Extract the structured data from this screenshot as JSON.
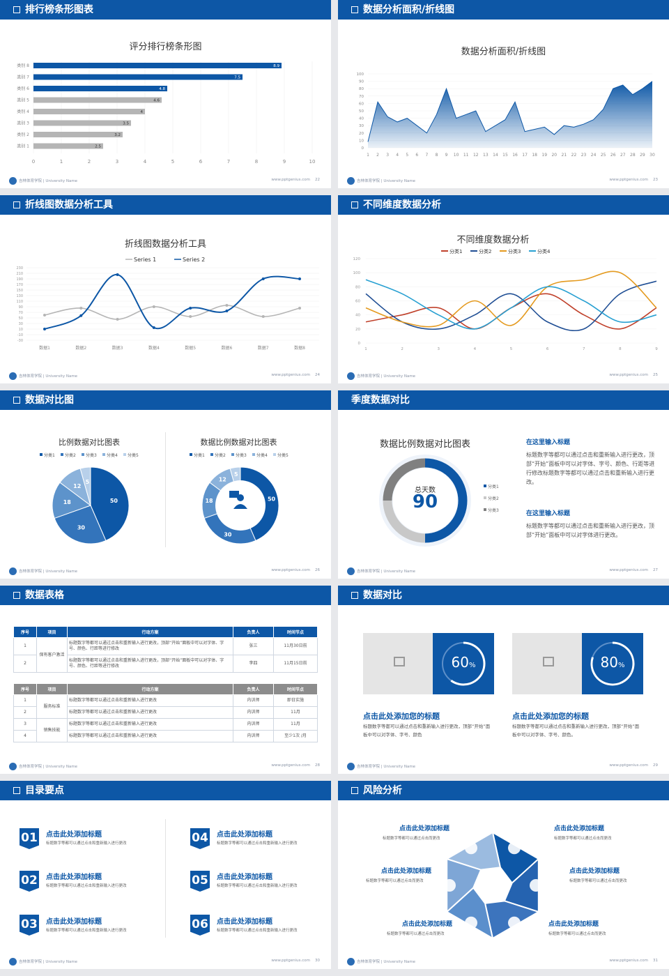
{
  "footer": {
    "uni": "吉林体育学院 | University Name",
    "web": "www.pptgenius.com"
  },
  "colors": {
    "primary": "#0d57a6",
    "grey": "#b5b5b5",
    "bg": "#e7e8eb"
  },
  "slides": {
    "s1": {
      "title": "排行榜条形图表",
      "page": "22"
    },
    "s2": {
      "title": "数据分析面积/折线图",
      "page": "23"
    },
    "s3": {
      "title": "折线图数据分析工具",
      "page": "24"
    },
    "s4": {
      "title": "不同维度数据分析",
      "page": "25"
    },
    "s5": {
      "title": "数据对比图",
      "page": "26"
    },
    "s6": {
      "title": "季度数据对比",
      "page": "27"
    },
    "s7": {
      "title": "数据表格",
      "page": "28"
    },
    "s8": {
      "title": "数据对比",
      "page": "29"
    },
    "s9": {
      "title": "目录要点",
      "page": "30"
    },
    "s10": {
      "title": "风险分析",
      "page": "31"
    }
  },
  "chart_data": [
    {
      "type": "bar",
      "title": "评分排行榜条形图",
      "categories": [
        "类别 8",
        "类别 7",
        "类别 6",
        "类别 5",
        "类别 4",
        "类别 3",
        "类别 2",
        "类别 1"
      ],
      "values": [
        8.9,
        7.5,
        4.8,
        4.6,
        4,
        3.5,
        3.2,
        2.5
      ],
      "highlight": [
        true,
        true,
        true,
        false,
        false,
        false,
        false,
        false
      ],
      "xlim": [
        0,
        10
      ],
      "xticks": [
        "0",
        "1",
        "2",
        "3",
        "4",
        "5",
        "6",
        "7",
        "8",
        "9",
        "10"
      ]
    },
    {
      "type": "area",
      "title": "数据分析面积/折线图",
      "x": [
        "1",
        "2",
        "3",
        "4",
        "5",
        "6",
        "7",
        "8",
        "9",
        "10",
        "11",
        "12",
        "13",
        "14",
        "15",
        "16",
        "17",
        "18",
        "19",
        "20",
        "21",
        "22",
        "23",
        "24",
        "25",
        "26",
        "27",
        "28",
        "29",
        "30"
      ],
      "values": [
        8,
        62,
        42,
        35,
        40,
        30,
        20,
        45,
        80,
        40,
        45,
        50,
        22,
        30,
        38,
        62,
        22,
        25,
        28,
        18,
        30,
        28,
        32,
        38,
        52,
        80,
        85,
        72,
        80,
        90
      ],
      "ylim": [
        0,
        100
      ],
      "yticks": [
        "0",
        "10",
        "20",
        "30",
        "40",
        "50",
        "60",
        "70",
        "80",
        "90",
        "100"
      ]
    },
    {
      "type": "line",
      "title": "折线图数据分析工具",
      "categories": [
        "数据1",
        "数据2",
        "数据3",
        "数据4",
        "数据5",
        "数据6",
        "数据7",
        "数据8"
      ],
      "series": [
        {
          "name": "Series 1",
          "values": [
            60,
            85,
            45,
            90,
            55,
            95,
            55,
            85
          ],
          "color": "#b5b5b5"
        },
        {
          "name": "Series 2",
          "values": [
            10,
            58,
            205,
            15,
            85,
            75,
            190,
            190
          ],
          "color": "#0d57a6"
        }
      ],
      "ylim": [
        -30,
        230
      ],
      "yticks": [
        "230",
        "210",
        "190",
        "170",
        "150",
        "130",
        "110",
        "90",
        "70",
        "50",
        "30",
        "10",
        "-10",
        "-30"
      ]
    },
    {
      "type": "line",
      "title": "不同维度数据分析",
      "categories": [
        "1",
        "2",
        "3",
        "4",
        "5",
        "6",
        "7",
        "8",
        "9"
      ],
      "series": [
        {
          "name": "分类1",
          "values": [
            30,
            40,
            50,
            20,
            50,
            70,
            40,
            20,
            50
          ],
          "color": "#c0412b"
        },
        {
          "name": "分类2",
          "values": [
            70,
            30,
            20,
            40,
            70,
            30,
            20,
            70,
            88
          ],
          "color": "#1f4e94"
        },
        {
          "name": "分类3",
          "values": [
            50,
            30,
            25,
            60,
            25,
            80,
            90,
            100,
            50
          ],
          "color": "#e49a1f"
        },
        {
          "name": "分类4",
          "values": [
            90,
            70,
            40,
            20,
            50,
            80,
            60,
            30,
            40
          ],
          "color": "#28a0d2"
        }
      ],
      "ylim": [
        0,
        120
      ],
      "yticks": [
        "0",
        "20",
        "40",
        "60",
        "80",
        "100",
        "120"
      ]
    },
    {
      "type": "pie",
      "title": "比例数据对比图表",
      "categories": [
        "分类1",
        "分类2",
        "分类3",
        "分类4",
        "分类5"
      ],
      "values": [
        50,
        30,
        18,
        12,
        5
      ],
      "colors": [
        "#0d57a6",
        "#3374bb",
        "#5d93cb",
        "#8bb2db",
        "#b8d0ea"
      ]
    },
    {
      "type": "pie",
      "title": "数据比例数据对比图表",
      "categories": [
        "分类1",
        "分类2",
        "分类3",
        "分类4",
        "分类5"
      ],
      "values": [
        50,
        30,
        18,
        12,
        5
      ],
      "colors": [
        "#0d57a6",
        "#3374bb",
        "#5d93cb",
        "#8bb2db",
        "#b8d0ea"
      ]
    },
    {
      "type": "pie",
      "title": "数据比例数据对比图表",
      "categories": [
        "分类1",
        "分类2",
        "分类3"
      ],
      "values": [
        50,
        25,
        25
      ],
      "colors": [
        "#0d57a6",
        "#c8c8c8",
        "#808080"
      ],
      "center_label": "总天数",
      "center_value": "90"
    }
  ],
  "s6": {
    "h1": "在这里输入标题",
    "p1": "标题数字等都可以通过点击和重新输入进行更改，顶部“开始”面板中可以对字体、字号、颜色、行距等进行修改标题数字等都可以通过点击和重新输入进行更改。",
    "h2": "在这里输入标题",
    "p2": "标题数字等都可以通过点击和重新输入进行更改，顶部“开始”面板中可以对字体进行更改。"
  },
  "s7": {
    "head1": [
      "序号",
      "项目",
      "行动方案",
      "负责人",
      "时间节点"
    ],
    "rows1": [
      [
        "1",
        "",
        "标题数字等都可以通过点击和重新输入进行更改，顶部“开始”面板中可以对字体、字号、颜色、行距等进行修改",
        "张三",
        "11月30日前"
      ],
      [
        "2",
        "",
        "标题数字等都可以通过点击和重新输入进行更改，顶部“开始”面板中可以对字体、字号、颜色、行距等进行修改",
        "李四",
        "11月15日前"
      ]
    ],
    "group1": "保有客户激活",
    "head2": [
      "序号",
      "项目",
      "行动方案",
      "负责人",
      "时间节点"
    ],
    "rows2": [
      [
        "1",
        "",
        "标题数字等都可以通过点击和重新输入进行更改",
        "内训师",
        "即日实施"
      ],
      [
        "2",
        "",
        "标题数字等都可以通过点击和重新输入进行更改",
        "内训师",
        "11月"
      ],
      [
        "3",
        "",
        "标题数字等都可以通过点击和重新输入进行更改",
        "内训师",
        "11月"
      ],
      [
        "4",
        "",
        "标题数字等都可以通过点击和重新输入进行更改",
        "内训师",
        "至少1次 /月"
      ]
    ],
    "group2a": "服务标准",
    "group2b": "销售技能"
  },
  "s8": {
    "tiles": [
      {
        "pct": 0.6,
        "label": "60",
        "unit": "%",
        "title": "点击此处添加您的标题",
        "text": "标题数字等都可以通过点击和重新输入进行更改，顶部“开始”面板中可以对字体、字号、颜色"
      },
      {
        "pct": 0.8,
        "label": "80",
        "unit": "%",
        "title": "点击此处添加您的标题",
        "text": "标题数字等都可以通过点击和重新输入进行更改，顶部“开始”面板中可以对字体、字号、颜色。"
      }
    ]
  },
  "s9": {
    "items": [
      {
        "n": "01",
        "t": "点击此处添加标题",
        "d": "标题数字等都可以通过点击和重新输入进行更改"
      },
      {
        "n": "02",
        "t": "点击此处添加标题",
        "d": "标题数字等都可以通过点击和重新输入进行更改"
      },
      {
        "n": "03",
        "t": "点击此处添加标题",
        "d": "标题数字等都可以通过点击和重新输入进行更改"
      },
      {
        "n": "04",
        "t": "点击此处添加标题",
        "d": "标题数字等都可以通过点击和重新输入进行更改"
      },
      {
        "n": "05",
        "t": "点击此处添加标题",
        "d": "标题数字等都可以通过点击和重新输入进行更改"
      },
      {
        "n": "06",
        "t": "点击此处添加标题",
        "d": "标题数字等都可以通过点击和重新输入进行更改"
      }
    ]
  },
  "s10": {
    "items": [
      {
        "t": "点击此处添加标题",
        "d": "标题数字等都可以通过点击而更改"
      },
      {
        "t": "点击此处添加标题",
        "d": "标题数字等都可以通过点击而更改"
      },
      {
        "t": "点击此处添加标题",
        "d": "标题数字等都可以通过点击而更改"
      },
      {
        "t": "点击此处添加标题",
        "d": "标题数字等都可以通过点击而更改"
      },
      {
        "t": "点击此处添加标题",
        "d": "标题数字等都可以通过点击而更改"
      },
      {
        "t": "点击此处添加标题",
        "d": "标题数字等都可以通过点击而更改"
      }
    ],
    "icons": [
      "money-bag-icon",
      "coins-icon",
      "people-icon",
      "pie-chart-icon",
      "building-icon",
      "yen-icon"
    ]
  }
}
